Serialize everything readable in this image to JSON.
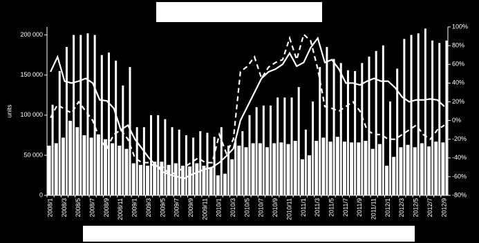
{
  "chart_data": {
    "type": "bar-line",
    "y_label": "units",
    "categories": [
      "2008/1",
      null,
      "2008/3",
      null,
      "2008/5",
      null,
      "2008/7",
      null,
      "2008/9",
      null,
      "2008/11",
      null,
      "2009/1",
      null,
      "2009/3",
      null,
      "2009/5",
      null,
      "2009/7",
      null,
      "2009/9",
      null,
      "2009/11",
      null,
      "2010/1",
      null,
      "2010/3",
      null,
      "2010/5",
      null,
      "2010/7",
      null,
      "2010/9",
      null,
      "2010/11",
      null,
      "2011/1",
      null,
      "2011/3",
      null,
      "2011/5",
      null,
      "2011/7",
      null,
      "2011/9",
      null,
      "2011/11",
      null,
      "2012/1",
      null,
      "2012/3",
      null,
      "2012/5",
      null,
      "2012/7",
      null,
      "2012/9"
    ],
    "series": [
      {
        "kind": "bar",
        "color": "#ffffff",
        "values": [
          62000,
          65000,
          72000,
          93000,
          85000,
          75000,
          72000,
          76000,
          70000,
          65000,
          62000,
          58000,
          40000,
          38000,
          37000,
          42000,
          42000,
          38000,
          40000,
          37000,
          36000,
          40000,
          37000,
          35000,
          25000,
          27000,
          45000,
          62000,
          60000,
          65000,
          65000,
          60000,
          65000,
          66000,
          64000,
          68000,
          45000,
          50000,
          68000,
          72000,
          67000,
          73000,
          67000,
          66000,
          66000,
          68000,
          58000,
          64000,
          37000,
          48000,
          60000,
          63000,
          60000,
          65000,
          61000,
          67000,
          66000
        ]
      },
      {
        "kind": "bar",
        "color": "#ffffff",
        "values": [
          113000,
          155000,
          185000,
          200000,
          200000,
          202000,
          200000,
          175000,
          178000,
          168000,
          137000,
          160000,
          85000,
          85000,
          100000,
          100000,
          95000,
          85000,
          82000,
          75000,
          72000,
          80000,
          78000,
          73000,
          85000,
          62000,
          70000,
          80000,
          100000,
          110000,
          112000,
          112000,
          122000,
          122000,
          122000,
          135000,
          82000,
          117000,
          160000,
          185000,
          170000,
          165000,
          156000,
          155000,
          165000,
          173000,
          180000,
          187000,
          117000,
          158000,
          195000,
          200000,
          202000,
          208000,
          193000,
          190000,
          193000
        ]
      },
      {
        "kind": "line",
        "axis": "y2",
        "color": "#ffffff",
        "dash": false,
        "values": [
          52,
          68,
          42,
          40,
          42,
          45,
          40,
          22,
          21,
          13,
          -10,
          -5,
          -20,
          -30,
          -40,
          -48,
          -55,
          -58,
          -60,
          -62,
          -58,
          -55,
          -52,
          -50,
          -45,
          -38,
          -30,
          0,
          15,
          30,
          45,
          52,
          55,
          60,
          72,
          58,
          62,
          78,
          88,
          62,
          65,
          55,
          40,
          40,
          38,
          42,
          45,
          42,
          42,
          35,
          25,
          20,
          22,
          22,
          23,
          22,
          15
        ]
      },
      {
        "kind": "line",
        "axis": "y2",
        "color": "#ffffff",
        "dash": true,
        "values": [
          3,
          17,
          12,
          8,
          20,
          10,
          0,
          -20,
          -30,
          -15,
          -10,
          -20,
          -40,
          -45,
          -45,
          -50,
          -50,
          -58,
          -55,
          -50,
          -45,
          -40,
          -45,
          -45,
          -15,
          -35,
          -20,
          52,
          58,
          68,
          45,
          57,
          62,
          65,
          88,
          65,
          92,
          85,
          55,
          15,
          13,
          10,
          15,
          20,
          10,
          -10,
          -15,
          -15,
          -20,
          -20,
          -15,
          -10,
          -5,
          -15,
          -20,
          -10,
          -5
        ]
      }
    ],
    "ylim": [
      0,
      210000
    ],
    "yticks": [
      0,
      {
        "value": 50000,
        "label": "50 000"
      },
      {
        "value": 100000,
        "label": "100 000"
      },
      {
        "value": 150000,
        "label": "150 000"
      },
      {
        "value": 200000,
        "label": "200 000"
      }
    ],
    "y2lim": [
      -80,
      100
    ],
    "y2ticks": [
      {
        "value": -80,
        "label": "-80%"
      },
      {
        "value": -60,
        "label": "-60%"
      },
      {
        "value": -40,
        "label": "-40%"
      },
      {
        "value": -20,
        "label": "-20%"
      },
      {
        "value": 0,
        "label": "0%"
      },
      {
        "value": 20,
        "label": "20%"
      },
      {
        "value": 40,
        "label": "40%"
      },
      {
        "value": 60,
        "label": "60%"
      },
      {
        "value": 80,
        "label": "80%"
      },
      {
        "value": 100,
        "label": "100%"
      }
    ],
    "grid": false
  }
}
